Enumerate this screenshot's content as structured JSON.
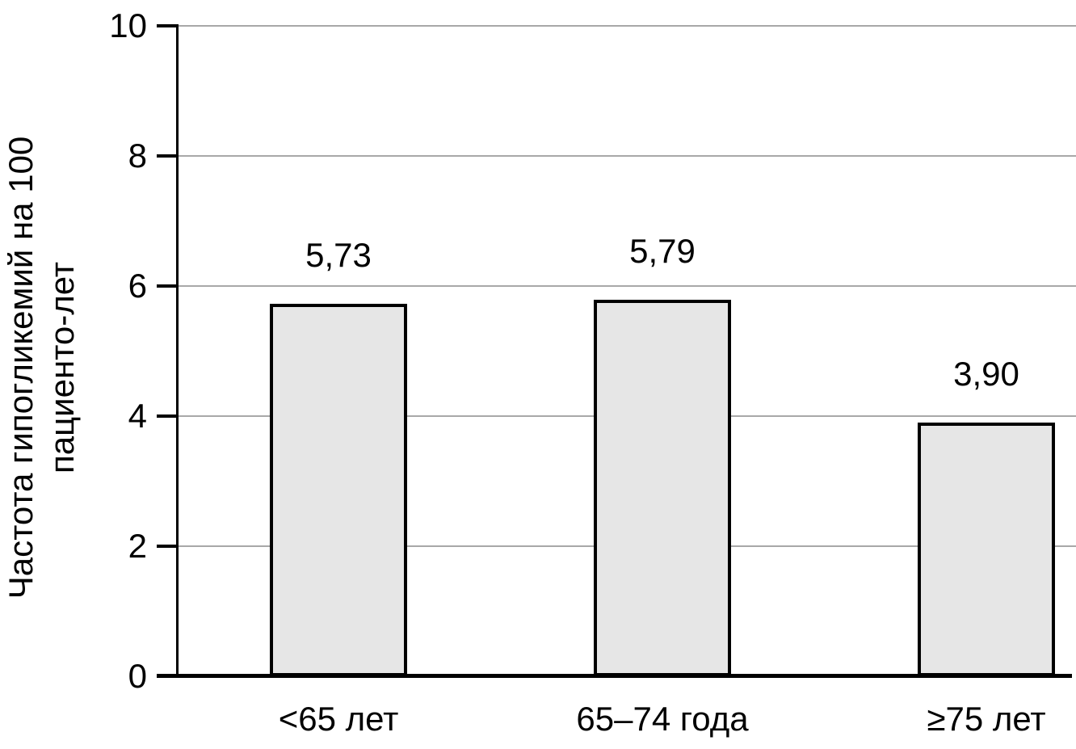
{
  "chart_data": {
    "type": "bar",
    "title": "",
    "xlabel": "",
    "ylabel": "Частота гипогликемий на 100 пациенто-лет",
    "ylabel_lines": [
      "Частота гипогликемий на 100",
      "пациенто-лет"
    ],
    "categories": [
      "<65 лет",
      "65–74 года",
      "≥75 лет"
    ],
    "values": [
      5.73,
      5.79,
      3.9
    ],
    "value_labels": [
      "5,73",
      "5,79",
      "3,90"
    ],
    "ylim": [
      0,
      10
    ],
    "yticks": [
      0,
      2,
      4,
      6,
      8,
      10
    ],
    "ytick_labels": [
      "0",
      "2",
      "4",
      "6",
      "8",
      "10"
    ],
    "grid": "horizontal",
    "legend": "none",
    "colors": {
      "bar_fill": "#e6e6e6",
      "bar_border": "#000000",
      "gridline": "#a8a8a8",
      "axis": "#000000",
      "text": "#000000",
      "background": "#ffffff"
    }
  }
}
